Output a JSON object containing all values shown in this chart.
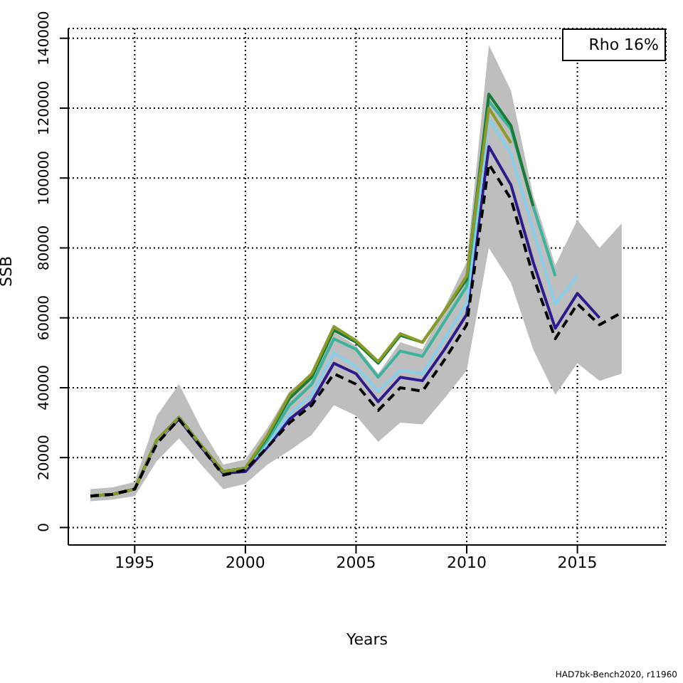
{
  "chart_data": {
    "type": "line",
    "xlabel": "Years",
    "ylabel": "SSB",
    "x": [
      1993,
      1994,
      1995,
      1996,
      1997,
      1998,
      1999,
      2000,
      2001,
      2002,
      2003,
      2004,
      2005,
      2006,
      2007,
      2008,
      2009,
      2010,
      2011,
      2012,
      2013,
      2014,
      2015,
      2016,
      2017
    ],
    "series": [
      {
        "color": "#000000",
        "line_style": "dashed",
        "values": [
          9000,
          9500,
          11000,
          24000,
          31000,
          23000,
          15000,
          16500,
          23000,
          30000,
          35000,
          44000,
          41000,
          33500,
          40000,
          39000,
          48000,
          58000,
          104000,
          94000,
          72000,
          54000,
          64000,
          58000,
          61500
        ],
        "lower": [
          7500,
          8000,
          9000,
          19000,
          25500,
          18000,
          11000,
          12500,
          18000,
          22000,
          26500,
          35000,
          32000,
          24500,
          30000,
          29500,
          37000,
          45000,
          80000,
          70000,
          51000,
          38000,
          47000,
          42000,
          44000
        ],
        "upper": [
          11000,
          11500,
          13000,
          32000,
          41000,
          28500,
          18000,
          19500,
          28500,
          39000,
          44000,
          56000,
          52000,
          44000,
          53000,
          51000,
          63000,
          76000,
          138000,
          125000,
          95000,
          75000,
          88000,
          80000,
          87000
        ]
      },
      {
        "color": "#2e1a8c",
        "values": [
          9000,
          9500,
          11000,
          24500,
          31000,
          23000,
          15500,
          16000,
          23000,
          31000,
          36000,
          47000,
          44000,
          36000,
          43000,
          42000,
          51000,
          61000,
          109000,
          98000,
          76000,
          57000,
          67000,
          60000,
          null
        ]
      },
      {
        "color": "#87ceeb",
        "values": [
          null,
          null,
          11000,
          24500,
          31500,
          23500,
          16000,
          17000,
          24000,
          32500,
          38000,
          50000,
          46000,
          39000,
          45000,
          44000,
          54000,
          64000,
          117000,
          107000,
          85000,
          64000,
          72000,
          null,
          null
        ]
      },
      {
        "color": "#3cb39a",
        "values": [
          9000,
          9500,
          11000,
          25000,
          31500,
          23500,
          16000,
          17000,
          25000,
          35000,
          41000,
          54000,
          51000,
          43000,
          50500,
          49000,
          59000,
          69000,
          122000,
          114000,
          92000,
          72000,
          null,
          null,
          null
        ]
      },
      {
        "color": "#1a7a3a",
        "values": [
          9000,
          9500,
          11000,
          25000,
          31500,
          23500,
          16000,
          17000,
          26000,
          37000,
          43000,
          56500,
          53000,
          47000,
          55000,
          53000,
          62000,
          71000,
          124000,
          115000,
          92000,
          null,
          null,
          null,
          null
        ]
      },
      {
        "color": "#8c9a28",
        "values": [
          9000,
          9500,
          11000,
          25000,
          31500,
          23500,
          16000,
          17000,
          26500,
          38000,
          44000,
          57500,
          53500,
          47500,
          55500,
          53000,
          62000,
          72000,
          120000,
          110000,
          null,
          null,
          null,
          null,
          null
        ]
      }
    ],
    "xlim": [
      1992,
      2019
    ],
    "xticks": [
      1995,
      2000,
      2005,
      2010,
      2015
    ],
    "ylim": [
      -5000,
      142800
    ],
    "yticks": [
      0,
      20000,
      40000,
      60000,
      80000,
      100000,
      120000,
      140000
    ],
    "grid": true,
    "marker": "none",
    "annotations": [
      "Rho 16%",
      "HAD7bk-Bench2020, r11960"
    ]
  }
}
